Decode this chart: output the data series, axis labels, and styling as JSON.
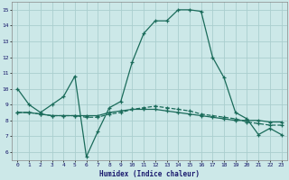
{
  "bg_color": "#cce8e8",
  "grid_color": "#aacece",
  "line_color": "#1a6b5a",
  "xlabel": "Humidex (Indice chaleur)",
  "xlim": [
    -0.5,
    23.5
  ],
  "ylim": [
    5.5,
    15.5
  ],
  "yticks": [
    6,
    7,
    8,
    9,
    10,
    11,
    12,
    13,
    14,
    15
  ],
  "xticks": [
    0,
    1,
    2,
    3,
    4,
    5,
    6,
    7,
    8,
    9,
    10,
    11,
    12,
    13,
    14,
    15,
    16,
    17,
    18,
    19,
    20,
    21,
    22,
    23
  ],
  "series1_x": [
    0,
    1,
    2,
    3,
    4,
    5,
    6,
    7,
    8,
    9,
    10,
    11,
    12,
    13,
    14,
    15,
    16,
    17,
    18,
    19,
    20,
    21,
    22,
    23
  ],
  "series1_y": [
    10.0,
    9.0,
    8.5,
    9.0,
    9.5,
    10.8,
    5.7,
    7.3,
    8.8,
    9.2,
    11.7,
    13.5,
    14.3,
    14.3,
    15.0,
    15.0,
    14.9,
    12.0,
    10.7,
    8.5,
    8.1,
    7.1,
    7.5,
    7.1
  ],
  "series2_x": [
    0,
    1,
    2,
    3,
    4,
    5,
    6,
    7,
    8,
    9,
    10,
    11,
    12,
    13,
    14,
    15,
    16,
    17,
    18,
    19,
    20,
    21,
    22,
    23
  ],
  "series2_y": [
    8.5,
    8.5,
    8.4,
    8.3,
    8.3,
    8.3,
    8.3,
    8.3,
    8.5,
    8.6,
    8.7,
    8.7,
    8.7,
    8.6,
    8.5,
    8.4,
    8.3,
    8.2,
    8.1,
    8.0,
    8.0,
    8.0,
    7.9,
    7.9
  ],
  "series3_x": [
    0,
    1,
    2,
    3,
    4,
    5,
    6,
    7,
    8,
    9,
    10,
    11,
    12,
    13,
    14,
    15,
    16,
    17,
    18,
    19,
    20,
    21,
    22,
    23
  ],
  "series3_y": [
    8.5,
    8.5,
    8.4,
    8.3,
    8.3,
    8.3,
    8.2,
    8.2,
    8.4,
    8.5,
    8.7,
    8.8,
    8.9,
    8.8,
    8.7,
    8.6,
    8.4,
    8.3,
    8.2,
    8.1,
    7.9,
    7.8,
    7.7,
    7.7
  ]
}
